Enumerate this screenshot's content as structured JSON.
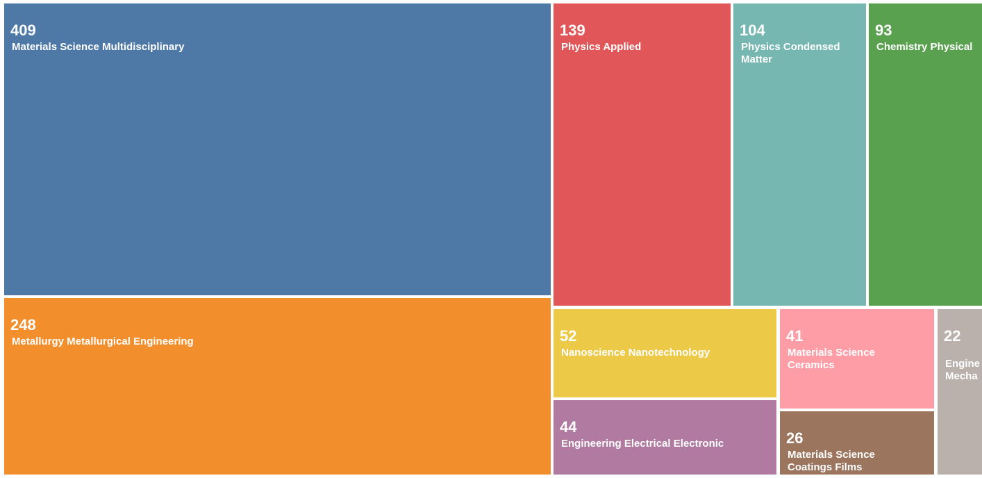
{
  "chart_data": {
    "type": "treemap",
    "items": [
      {
        "label_lines": [
          "Materials Science Multidisciplinary"
        ],
        "value": 409,
        "value_text": "409",
        "color": "#4e79a7"
      },
      {
        "label_lines": [
          "Metallurgy Metallurgical Engineering"
        ],
        "value": 248,
        "value_text": "248",
        "color": "#f28e2b"
      },
      {
        "label_lines": [
          "Physics Applied"
        ],
        "value": 139,
        "value_text": "139",
        "color": "#e15759"
      },
      {
        "label_lines": [
          "Physics Condensed",
          "Matter"
        ],
        "value": 104,
        "value_text": "104",
        "color": "#76b7b2"
      },
      {
        "label_lines": [
          "Chemistry Physical"
        ],
        "value": 93,
        "value_text": "93",
        "color": "#59a14f"
      },
      {
        "label_lines": [
          "Nanoscience Nanotechnology"
        ],
        "value": 52,
        "value_text": "52",
        "color": "#edc948"
      },
      {
        "label_lines": [
          "Engineering Electrical Electronic"
        ],
        "value": 44,
        "value_text": "44",
        "color": "#b07aa1"
      },
      {
        "label_lines": [
          "Materials Science",
          "Ceramics"
        ],
        "value": 41,
        "value_text": "41",
        "color": "#ff9da7"
      },
      {
        "label_lines": [
          "Materials Science",
          "Coatings Films"
        ],
        "value": 26,
        "value_text": "26",
        "color": "#9c755f"
      },
      {
        "label_lines": [
          "Engine",
          "Mecha"
        ],
        "value": 22,
        "value_text": "22",
        "color": "#bab0ac"
      }
    ]
  }
}
